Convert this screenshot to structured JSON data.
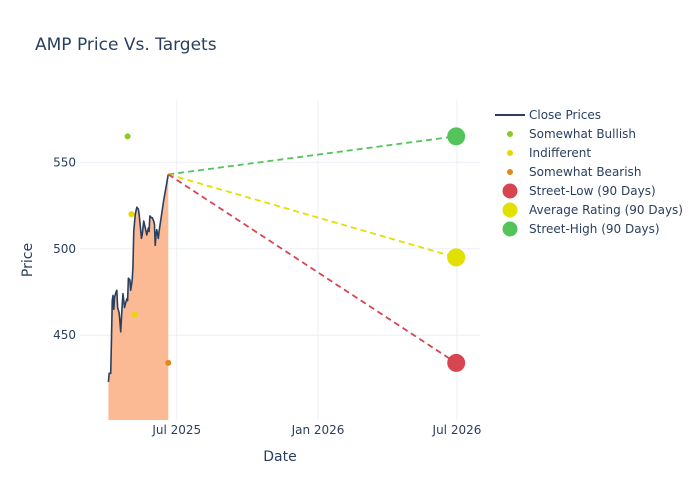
{
  "chart_data": {
    "type": "line",
    "title": "AMP Price Vs. Targets",
    "xlabel": "Date",
    "ylabel": "Price",
    "x_range": [
      "2025-02-25",
      "2026-07-31"
    ],
    "ylim": [
      401,
      586
    ],
    "x_ticks": [
      {
        "date": "2025-07-01",
        "label": "Jul 2025"
      },
      {
        "date": "2026-01-01",
        "label": "Jan 2026"
      },
      {
        "date": "2026-07-01",
        "label": "Jul 2026"
      }
    ],
    "y_ticks": [
      450,
      500,
      550
    ],
    "grid": true,
    "legend_position": "top-right",
    "colors": {
      "close": "#2a3f5f",
      "area_fill": "#fbb994",
      "somewhat_bullish": "#8ac926",
      "indifferent": "#e6d800",
      "somewhat_bearish": "#e08a1e",
      "street_low": "#d64550",
      "average": "#e2e000",
      "street_high": "#52c45a",
      "text": "#2a3f5f",
      "grid": "#ebeff5"
    },
    "legend": [
      {
        "label": "Close Prices",
        "kind": "line",
        "color": "#2a3f5f"
      },
      {
        "label": "Somewhat Bullish",
        "kind": "small-dot",
        "color": "#8ac926"
      },
      {
        "label": "Indifferent",
        "kind": "small-dot",
        "color": "#e6d800"
      },
      {
        "label": "Somewhat Bearish",
        "kind": "small-dot",
        "color": "#e08a1e"
      },
      {
        "label": "Street-Low (90 Days)",
        "kind": "big-dot",
        "color": "#d64550"
      },
      {
        "label": "Average Rating (90 Days)",
        "kind": "big-dot",
        "color": "#e2e000"
      },
      {
        "label": "Street-High (90 Days)",
        "kind": "big-dot",
        "color": "#52c45a"
      }
    ],
    "close_prices": [
      [
        "2025-04-03",
        423
      ],
      [
        "2025-04-04",
        428
      ],
      [
        "2025-04-06",
        428
      ],
      [
        "2025-04-07",
        448
      ],
      [
        "2025-04-08",
        470
      ],
      [
        "2025-04-09",
        473
      ],
      [
        "2025-04-10",
        465
      ],
      [
        "2025-04-11",
        472
      ],
      [
        "2025-04-13",
        475
      ],
      [
        "2025-04-14",
        476
      ],
      [
        "2025-04-15",
        466
      ],
      [
        "2025-04-17",
        463
      ],
      [
        "2025-04-18",
        458
      ],
      [
        "2025-04-19",
        452
      ],
      [
        "2025-04-21",
        468
      ],
      [
        "2025-04-22",
        474
      ],
      [
        "2025-04-24",
        466
      ],
      [
        "2025-04-25",
        468
      ],
      [
        "2025-04-27",
        471
      ],
      [
        "2025-04-28",
        470
      ],
      [
        "2025-04-29",
        483
      ],
      [
        "2025-05-01",
        482
      ],
      [
        "2025-05-02",
        476
      ],
      [
        "2025-05-04",
        482
      ],
      [
        "2025-05-05",
        490
      ],
      [
        "2025-05-06",
        510
      ],
      [
        "2025-05-08",
        520
      ],
      [
        "2025-05-09",
        522
      ],
      [
        "2025-05-10",
        524
      ],
      [
        "2025-05-12",
        523
      ],
      [
        "2025-05-13",
        520
      ],
      [
        "2025-05-15",
        511
      ],
      [
        "2025-05-16",
        506
      ],
      [
        "2025-05-17",
        508
      ],
      [
        "2025-05-19",
        516
      ],
      [
        "2025-05-20",
        514
      ],
      [
        "2025-05-22",
        510
      ],
      [
        "2025-05-23",
        508
      ],
      [
        "2025-05-25",
        512
      ],
      [
        "2025-05-26",
        510
      ],
      [
        "2025-05-27",
        519
      ],
      [
        "2025-05-29",
        518
      ],
      [
        "2025-05-30",
        518
      ],
      [
        "2025-06-01",
        516
      ],
      [
        "2025-06-02",
        514
      ],
      [
        "2025-06-03",
        502
      ],
      [
        "2025-06-04",
        508
      ],
      [
        "2025-06-05",
        511
      ],
      [
        "2025-06-07",
        506
      ],
      [
        "2025-06-08",
        510
      ],
      [
        "2025-06-10",
        516
      ],
      [
        "2025-06-12",
        522
      ],
      [
        "2025-06-14",
        528
      ],
      [
        "2025-06-16",
        533
      ],
      [
        "2025-06-18",
        538
      ],
      [
        "2025-06-20",
        543
      ]
    ],
    "analyst_ratings": [
      {
        "category": "Somewhat Bullish",
        "date": "2025-04-28",
        "price": 565
      },
      {
        "category": "Indifferent",
        "date": "2025-05-03",
        "price": 520
      },
      {
        "category": "Indifferent",
        "date": "2025-05-07",
        "price": 462
      },
      {
        "category": "Somewhat Bearish",
        "date": "2025-06-20",
        "price": 434
      }
    ],
    "targets": {
      "start": {
        "date": "2025-06-20",
        "price": 543
      },
      "end_date": "2026-06-30",
      "street_low": 434,
      "average": 495,
      "street_high": 565
    }
  }
}
